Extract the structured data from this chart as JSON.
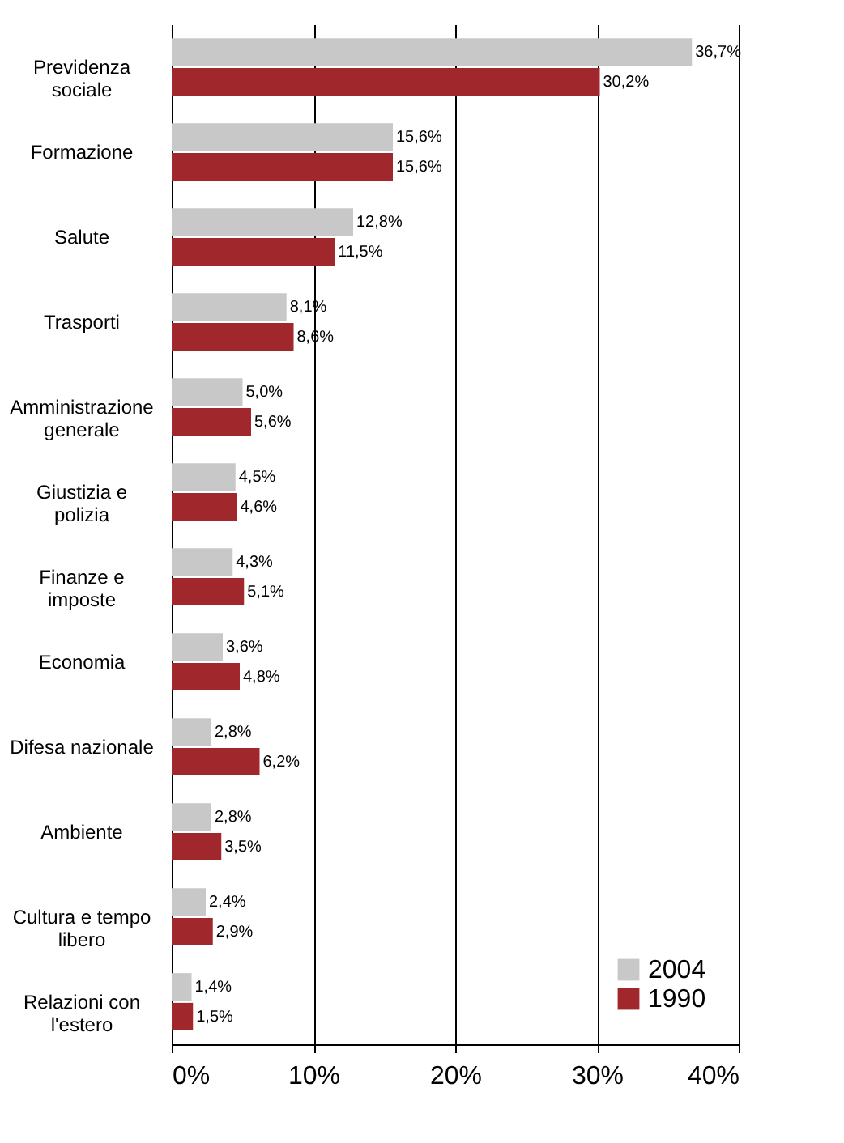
{
  "chart_data": {
    "type": "bar",
    "orientation": "horizontal",
    "categories": [
      "Previdenza sociale",
      "Formazione",
      "Salute",
      "Trasporti",
      "Amministrazione generale",
      "Giustizia e polizia",
      "Finanze e imposte",
      "Economia",
      "Difesa nazionale",
      "Ambiente",
      "Cultura e tempo libero",
      "Relazioni con l'estero"
    ],
    "series": [
      {
        "name": "2004",
        "color": "#c8c8c8",
        "values": [
          36.7,
          15.6,
          12.8,
          8.1,
          5.0,
          4.5,
          4.3,
          3.6,
          2.8,
          2.8,
          2.4,
          1.4
        ],
        "value_labels": [
          "36,7%",
          "15,6%",
          "12,8%",
          "8,1%",
          "5,0%",
          "4,5%",
          "4,3%",
          "3,6%",
          "2,8%",
          "2,8%",
          "2,4%",
          "1,4%"
        ]
      },
      {
        "name": "1990",
        "color": "#a0282d",
        "values": [
          30.2,
          15.6,
          11.5,
          8.6,
          5.6,
          4.6,
          5.1,
          4.8,
          6.2,
          3.5,
          2.9,
          1.5
        ],
        "value_labels": [
          "30,2%",
          "15,6%",
          "11,5%",
          "8,6%",
          "5,6%",
          "4,6%",
          "5,1%",
          "4,8%",
          "6,2%",
          "3,5%",
          "2,9%",
          "1,5%"
        ]
      }
    ],
    "xlim": [
      0,
      40
    ],
    "xticks": [
      {
        "value": 0,
        "label": "0%"
      },
      {
        "value": 10,
        "label": "10%"
      },
      {
        "value": 20,
        "label": "20%"
      },
      {
        "value": 30,
        "label": "30%"
      },
      {
        "value": 40,
        "label": "40%"
      }
    ],
    "grid": "x",
    "legend": "bottom right"
  }
}
